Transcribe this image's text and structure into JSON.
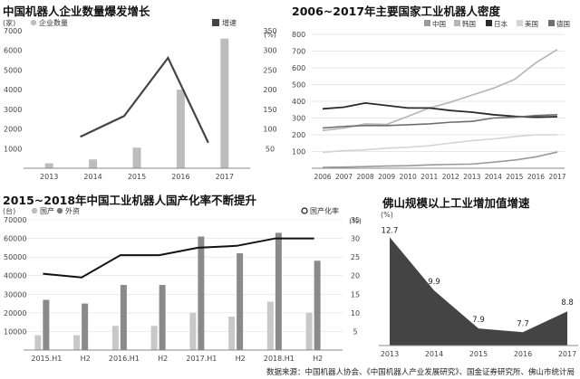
{
  "source": "数据来源：中国机器人协会、《中国机器人产业发展研究》、国金证券研究所、佛山市统计局",
  "chart_data": [
    {
      "type": "bar",
      "title": "中国机器人企业数量爆发增长",
      "left_unit": "(家)",
      "right_unit": "(%)",
      "legend": [
        {
          "label": "企业数量",
          "color": "#bdbdbd"
        },
        {
          "label": "增速",
          "color": "#444444"
        }
      ],
      "categories": [
        "2013",
        "2014",
        "2015",
        "2016",
        "2017"
      ],
      "series": [
        {
          "name": "企业数量",
          "type": "bar",
          "axis": "left",
          "values": [
            250,
            450,
            1050,
            4000,
            6600
          ]
        },
        {
          "name": "增速",
          "type": "line",
          "axis": "right",
          "values": [
            null,
            80,
            133,
            281,
            65
          ]
        }
      ],
      "ylim": [
        0,
        7000
      ],
      "y_ticks": [
        1000,
        2000,
        3000,
        4000,
        5000,
        6000,
        7000
      ],
      "y2lim": [
        0,
        350
      ],
      "y2_ticks": [
        50,
        100,
        150,
        200,
        250,
        300,
        350
      ]
    },
    {
      "type": "line",
      "title": "2006~2017年主要国家工业机器人密度",
      "legend": [
        {
          "label": "中国",
          "color": "#9a9a9a"
        },
        {
          "label": "韩国",
          "color": "#b5b5b5"
        },
        {
          "label": "日本",
          "color": "#2a2a2a"
        },
        {
          "label": "美国",
          "color": "#d4d4d4"
        },
        {
          "label": "德国",
          "color": "#6e6e6e"
        }
      ],
      "x": [
        "2006",
        "2007",
        "2008",
        "2009",
        "2010",
        "2011",
        "2012",
        "2013",
        "2014",
        "2015",
        "2016",
        "2017"
      ],
      "series": [
        {
          "name": "中国",
          "values": [
            5,
            7,
            10,
            13,
            15,
            20,
            23,
            25,
            36,
            49,
            68,
            97
          ]
        },
        {
          "name": "韩国",
          "values": [
            225,
            240,
            265,
            262,
            310,
            360,
            395,
            437,
            478,
            531,
            631,
            710
          ]
        },
        {
          "name": "日本",
          "values": [
            355,
            365,
            390,
            375,
            360,
            360,
            345,
            335,
            320,
            310,
            305,
            308
          ]
        },
        {
          "name": "美国",
          "values": [
            95,
            105,
            110,
            120,
            125,
            135,
            150,
            165,
            175,
            189,
            200,
            200
          ]
        },
        {
          "name": "德国",
          "values": [
            240,
            250,
            255,
            255,
            260,
            265,
            275,
            280,
            300,
            305,
            315,
            320
          ]
        }
      ],
      "ylim": [
        0,
        800
      ],
      "y_ticks": [
        100,
        200,
        300,
        400,
        500,
        600,
        700,
        800
      ]
    },
    {
      "type": "bar",
      "title": "2015~2018年中国工业机器人国产化率不断提升",
      "left_unit": "(台)",
      "right_unit": "(%)",
      "legend": [
        {
          "label": "国产",
          "color": "#bdbdbd"
        },
        {
          "label": "外资",
          "color": "#7a7a7a"
        },
        {
          "label": "国产化率",
          "color": "#111111"
        }
      ],
      "categories": [
        "2015.H1",
        "H2",
        "2016.H1",
        "H2",
        "2017.H1",
        "H2",
        "2018.H1",
        "H2"
      ],
      "series": [
        {
          "name": "国产",
          "type": "bar",
          "axis": "left",
          "values": [
            8000,
            8000,
            13000,
            13000,
            20000,
            18000,
            26000,
            20000
          ]
        },
        {
          "name": "外资",
          "type": "bar",
          "axis": "left",
          "values": [
            27000,
            25000,
            35000,
            35000,
            61000,
            52000,
            63000,
            48000
          ]
        },
        {
          "name": "国产化率",
          "type": "line",
          "axis": "right",
          "values": [
            20.5,
            19.5,
            25.5,
            25.5,
            27.5,
            28,
            30,
            30
          ]
        }
      ],
      "ylim": [
        0,
        70000
      ],
      "y_ticks": [
        10000,
        20000,
        30000,
        40000,
        50000,
        60000,
        70000
      ],
      "y2lim": [
        0,
        35
      ],
      "y2_ticks": [
        5,
        10,
        15,
        20,
        25,
        30,
        35
      ]
    },
    {
      "type": "area",
      "title": "佛山规模以上工业增加值增速",
      "unit": "(%)",
      "x": [
        "2013",
        "2014",
        "2015",
        "2016",
        "2017"
      ],
      "values": [
        12.7,
        9.9,
        7.9,
        7.7,
        8.8
      ],
      "data_labels": [
        "12.7",
        "9.9",
        "7.9",
        "7.7",
        "8.8"
      ],
      "ylim": [
        7,
        13
      ],
      "color": "#444444"
    }
  ]
}
